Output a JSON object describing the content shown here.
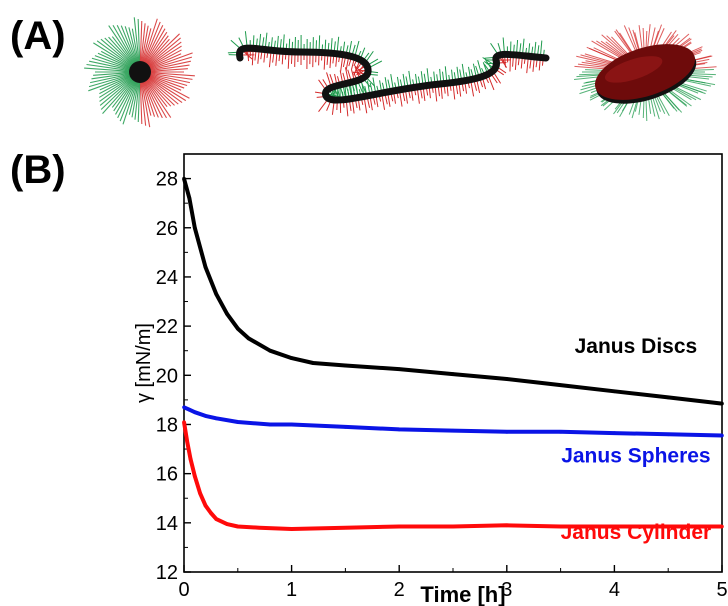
{
  "panels": {
    "a_label": "(A)",
    "b_label": "(B)"
  },
  "illustrations": [
    {
      "name": "janus-sphere",
      "colors": [
        "#1e9a4c",
        "#d42a2a",
        "#111111"
      ]
    },
    {
      "name": "janus-cylinder",
      "colors": [
        "#1e9a4c",
        "#d42a2a",
        "#111111"
      ]
    },
    {
      "name": "janus-disc",
      "colors": [
        "#1e9a4c",
        "#d42a2a",
        "#6e0b0b"
      ]
    }
  ],
  "chart_data": {
    "type": "line",
    "xlabel": "Time [h]",
    "ylabel": "γ [mN/m]",
    "xlim": [
      0,
      5
    ],
    "ylim": [
      12,
      29
    ],
    "xticks": [
      0,
      1,
      2,
      3,
      4,
      5
    ],
    "yticks": [
      12,
      14,
      16,
      18,
      20,
      22,
      24,
      26,
      28
    ],
    "grid": false,
    "series": [
      {
        "name": "Janus Discs",
        "color": "#000000",
        "x": [
          0,
          0.05,
          0.1,
          0.2,
          0.3,
          0.4,
          0.5,
          0.6,
          0.8,
          1.0,
          1.2,
          1.5,
          2.0,
          2.5,
          3.0,
          3.5,
          4.0,
          4.5,
          5.0
        ],
        "y": [
          28.0,
          27.2,
          26.0,
          24.4,
          23.3,
          22.5,
          21.9,
          21.5,
          21.0,
          20.7,
          20.5,
          20.4,
          20.25,
          20.05,
          19.85,
          19.6,
          19.35,
          19.1,
          18.85
        ]
      },
      {
        "name": "Janus Spheres",
        "color": "#0a14e6",
        "x": [
          0,
          0.05,
          0.1,
          0.2,
          0.3,
          0.5,
          0.8,
          1.0,
          1.5,
          2.0,
          2.5,
          3.0,
          3.5,
          4.0,
          4.5,
          5.0
        ],
        "y": [
          18.7,
          18.6,
          18.5,
          18.35,
          18.25,
          18.1,
          18.0,
          18.0,
          17.9,
          17.8,
          17.75,
          17.7,
          17.7,
          17.65,
          17.6,
          17.55
        ]
      },
      {
        "name": "Janus Cylinder",
        "color": "#ff0a0a",
        "x": [
          0,
          0.03,
          0.06,
          0.1,
          0.15,
          0.2,
          0.25,
          0.3,
          0.4,
          0.5,
          0.7,
          1.0,
          1.5,
          2.0,
          2.5,
          3.0,
          3.5,
          4.0,
          4.5,
          5.0
        ],
        "y": [
          18.1,
          17.3,
          16.6,
          15.9,
          15.2,
          14.7,
          14.4,
          14.15,
          13.95,
          13.85,
          13.8,
          13.75,
          13.8,
          13.85,
          13.85,
          13.9,
          13.85,
          13.85,
          13.85,
          13.85
        ]
      }
    ],
    "annotations": [
      {
        "text": "Janus Discs",
        "color": "#000000",
        "x": 4.2,
        "y": 20.9
      },
      {
        "text": "Janus Spheres",
        "color": "#0a14e6",
        "x": 4.2,
        "y": 16.45
      },
      {
        "text": "Janus Cylinder",
        "color": "#ff0a0a",
        "x": 4.2,
        "y": 13.35
      }
    ]
  }
}
